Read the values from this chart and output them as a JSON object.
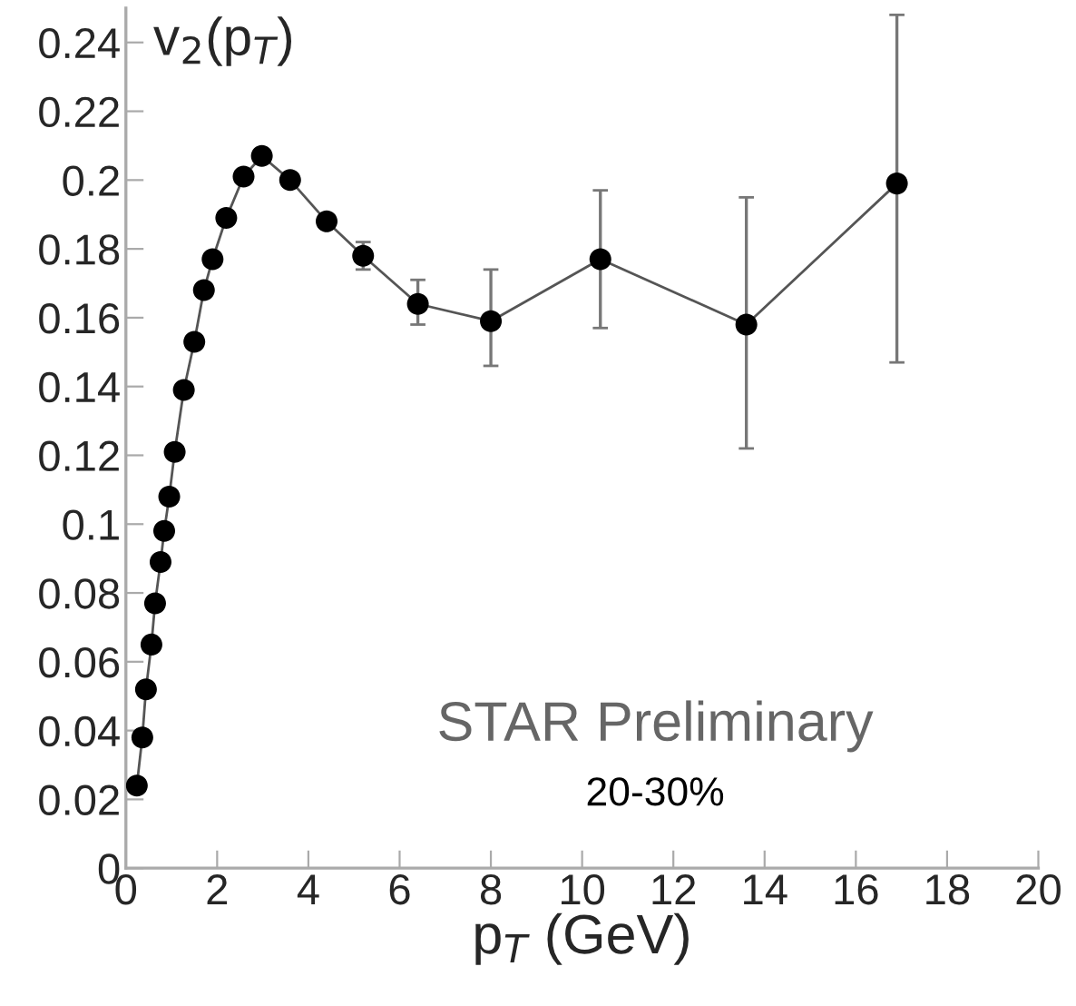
{
  "chart_data": {
    "type": "line",
    "xlabel": "p$_{T}$ (GeV)",
    "ylabel": "v$_{2}$(p$_{T}$)",
    "annotations": [
      "STAR Preliminary",
      "20-30%"
    ],
    "x": [
      0.24,
      0.36,
      0.44,
      0.56,
      0.64,
      0.76,
      0.84,
      0.95,
      1.07,
      1.27,
      1.5,
      1.71,
      1.9,
      2.2,
      2.58,
      2.98,
      3.6,
      4.4,
      5.2,
      6.4,
      8.0,
      10.4,
      13.6,
      16.9
    ],
    "series": [
      {
        "color": "#000000",
        "values": [
          0.024,
          0.038,
          0.052,
          0.065,
          0.077,
          0.089,
          0.098,
          0.108,
          0.121,
          0.139,
          0.153,
          0.168,
          0.177,
          0.189,
          0.201,
          0.207,
          0.2,
          0.188,
          0.178,
          0.164,
          0.159,
          0.177,
          0.158,
          0.199
        ],
        "errors": [
          null,
          null,
          null,
          null,
          null,
          null,
          null,
          null,
          null,
          null,
          null,
          null,
          null,
          null,
          null,
          null,
          null,
          null,
          [
            0.174,
            0.182
          ],
          [
            0.158,
            0.171
          ],
          [
            0.146,
            0.174
          ],
          [
            0.157,
            0.197
          ],
          [
            0.122,
            0.195
          ],
          [
            0.147,
            0.248
          ]
        ]
      }
    ],
    "xlim": [
      0,
      20
    ],
    "ylim": [
      0,
      0.25
    ],
    "xticks": [
      0,
      2,
      4,
      6,
      8,
      10,
      12,
      14,
      16,
      18,
      20
    ],
    "yticks": [
      0,
      0.02,
      0.04,
      0.06,
      0.08,
      {
        "value": 0.1,
        "label": "0.1"
      },
      0.12,
      0.14,
      0.16,
      0.18,
      {
        "value": 0.2,
        "label": "0.2"
      },
      0.22,
      0.24
    ],
    "marker": "circle",
    "line_style": "solid",
    "grid": false,
    "legend": false
  }
}
